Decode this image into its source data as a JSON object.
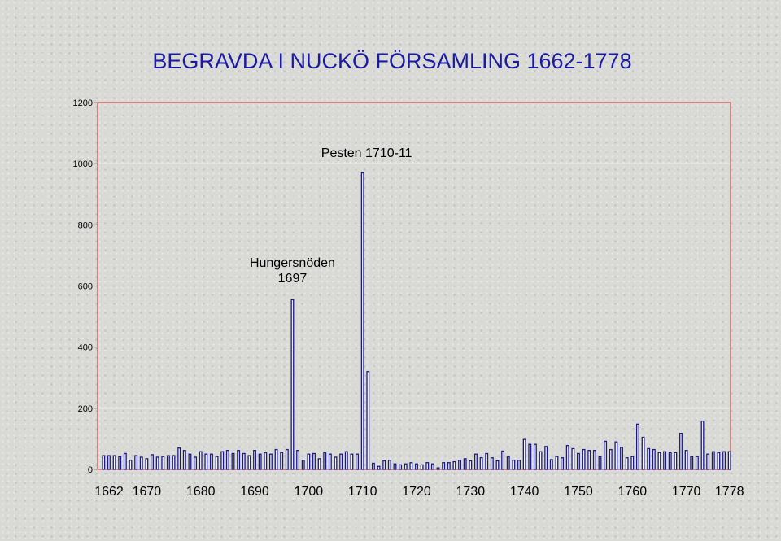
{
  "chart_data": {
    "type": "bar",
    "title": "BEGRAVDA I NUCKÖ FÖRSAMLING 1662-1778",
    "ylim": [
      0,
      1200
    ],
    "yticks": [
      "0",
      "200",
      "400",
      "600",
      "800",
      "1000",
      "1200"
    ],
    "xtick_labels": [
      "1662",
      "1670",
      "1680",
      "1690",
      "1700",
      "1710",
      "1720",
      "1730",
      "1740",
      "1750",
      "1760",
      "1770",
      "1778"
    ],
    "x_start": 1662,
    "x_end": 1778,
    "grid": true,
    "colors": {
      "bar_fill": "#f4f4fb",
      "bar_stroke": "#1a1a80",
      "frame": "#c83232",
      "title": "#1a1aa6"
    },
    "annotations": [
      {
        "lines": [
          "Pesten 1710-11"
        ],
        "year": 1710
      },
      {
        "lines": [
          "Hungersnöden",
          "1697"
        ],
        "year": 1697
      }
    ],
    "values": [
      45,
      45,
      45,
      42,
      52,
      30,
      45,
      40,
      35,
      48,
      40,
      42,
      45,
      45,
      70,
      62,
      50,
      40,
      58,
      50,
      50,
      42,
      58,
      62,
      52,
      62,
      52,
      45,
      62,
      50,
      55,
      50,
      65,
      55,
      65,
      555,
      62,
      30,
      50,
      52,
      35,
      55,
      50,
      40,
      50,
      58,
      50,
      50,
      970,
      320,
      20,
      10,
      28,
      30,
      18,
      15,
      18,
      22,
      18,
      15,
      22,
      18,
      5,
      22,
      22,
      25,
      30,
      35,
      28,
      50,
      38,
      52,
      38,
      28,
      60,
      42,
      30,
      30,
      98,
      82,
      82,
      58,
      75,
      32,
      42,
      38,
      78,
      68,
      52,
      65,
      62,
      62,
      42,
      92,
      65,
      90,
      72,
      38,
      42,
      148,
      105,
      68,
      65,
      55,
      58,
      55,
      55,
      118,
      62,
      42,
      42,
      158,
      50,
      58,
      55,
      58,
      58
    ]
  }
}
